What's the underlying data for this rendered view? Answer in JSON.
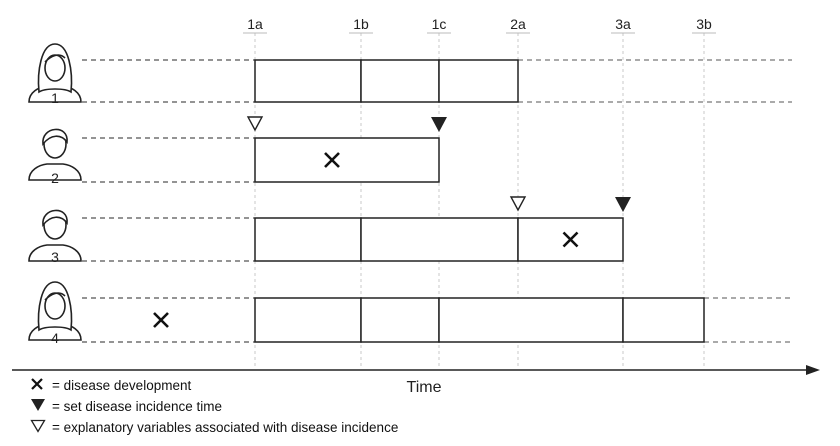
{
  "timepoints": [
    "1a",
    "1b",
    "1c",
    "2a",
    "3a",
    "3b"
  ],
  "axis_label": "Time",
  "persons": [
    {
      "id": "1",
      "icon": "woman-icon",
      "boxes": [
        [
          "1a",
          "1b"
        ],
        [
          "1b",
          "1c"
        ],
        [
          "1c",
          "2a"
        ]
      ],
      "extends_right": true,
      "cross": null,
      "open_marker": null,
      "filled_marker": null
    },
    {
      "id": "2",
      "icon": "man-icon",
      "boxes": [
        [
          "1a",
          "1c"
        ]
      ],
      "extends_right": false,
      "cross": "1a-1c",
      "open_marker": "1a",
      "filled_marker": "1c"
    },
    {
      "id": "3",
      "icon": "man-icon",
      "boxes": [
        [
          "1a",
          "1b"
        ],
        [
          "1b",
          "2a"
        ],
        [
          "2a",
          "3a"
        ]
      ],
      "extends_right": false,
      "cross": "2a-3a",
      "open_marker": "2a",
      "filled_marker": "3a"
    },
    {
      "id": "4",
      "icon": "woman-icon",
      "boxes": [
        [
          "1a",
          "1b"
        ],
        [
          "1b",
          "1c"
        ],
        [
          "1c",
          "3a"
        ],
        [
          "3a",
          "3b"
        ]
      ],
      "extends_right": true,
      "cross": "before-1a",
      "open_marker": null,
      "filled_marker": null
    }
  ],
  "legend": {
    "cross": "= disease development",
    "filled": "= set disease incidence time",
    "open": "= explanatory variables associated with disease incidence"
  }
}
